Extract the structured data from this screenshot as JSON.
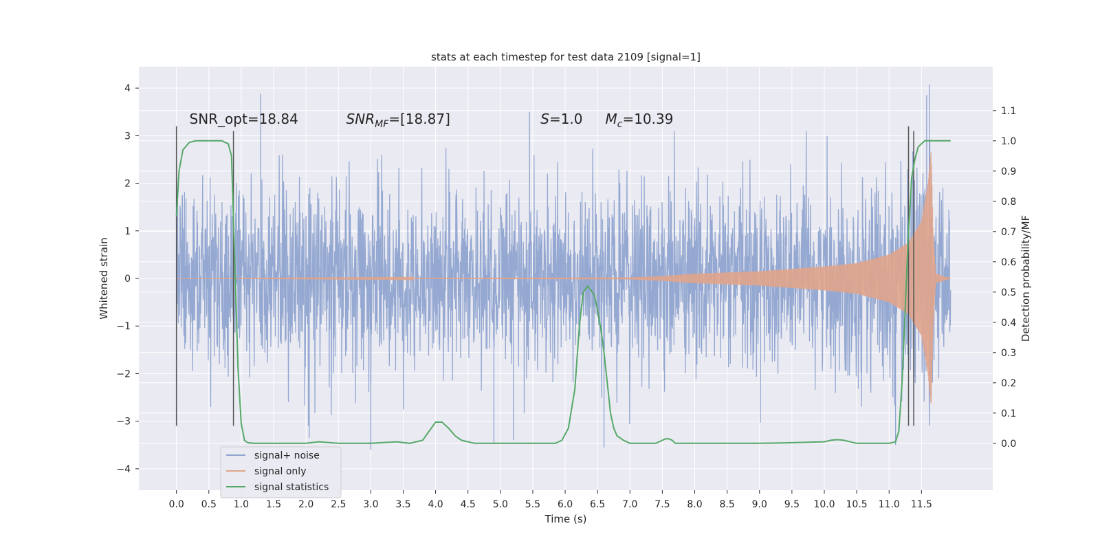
{
  "chart_data": {
    "type": "line",
    "title": "stats at each timestep for test data 2109 [signal=1]",
    "xlabel": "Time (s)",
    "ylabel": "Whitened strain",
    "y2label": "Detection probability/MF",
    "xlim": [
      -0.58,
      12.6
    ],
    "ylim": [
      -4.45,
      4.45
    ],
    "y2lim": [
      -0.155,
      1.245
    ],
    "xticks": [
      "0.0",
      "0.5",
      "1.0",
      "1.5",
      "2.0",
      "2.5",
      "3.0",
      "3.5",
      "4.0",
      "4.5",
      "5.0",
      "5.5",
      "6.0",
      "6.5",
      "7.0",
      "7.5",
      "8.0",
      "8.5",
      "9.0",
      "9.5",
      "10.0",
      "10.5",
      "11.0",
      "11.5"
    ],
    "yticks": [
      "4",
      "3",
      "2",
      "1",
      "0",
      "−1",
      "−2",
      "−3",
      "−4"
    ],
    "y2ticks": [
      "1.1",
      "1.0",
      "0.9",
      "0.8",
      "0.7",
      "0.6",
      "0.5",
      "0.4",
      "0.3",
      "0.2",
      "0.1",
      "0.0"
    ],
    "grid": true,
    "legend_position": "lower-left",
    "annotations": [
      {
        "text": "SNR_opt=18.84",
        "x": 0.2,
        "y": 3.35
      },
      {
        "text": "SNR",
        "sub": "MF",
        "rest": "=[18.87]",
        "italic": true,
        "x": 2.62,
        "y": 3.35
      },
      {
        "text": "S",
        "rest": "=1.0",
        "italic": true,
        "x": 5.62,
        "y": 3.35
      },
      {
        "text": "M",
        "sub": "c",
        "rest": "=10.39",
        "italic": true,
        "x": 6.62,
        "y": 3.35
      }
    ],
    "series": [
      {
        "name": "signal+ noise",
        "color": "#8fa4cf",
        "description_kind": "noise",
        "x_start": 0.0,
        "x_end": 11.95,
        "typical_band": [
          -1.9,
          1.95
        ],
        "extremes": [
          {
            "x": 0.0,
            "y": -3.1
          },
          {
            "x": 1.3,
            "y": 3.88
          },
          {
            "x": 2.05,
            "y": -3.35
          },
          {
            "x": 3.0,
            "y": -3.6
          },
          {
            "x": 4.9,
            "y": -3.45
          },
          {
            "x": 5.2,
            "y": -3.4
          },
          {
            "x": 5.45,
            "y": 3.5
          },
          {
            "x": 6.6,
            "y": -3.55
          },
          {
            "x": 11.1,
            "y": -3.5
          },
          {
            "x": 11.62,
            "y": 4.08
          },
          {
            "x": 11.58,
            "y": 3.85
          }
        ]
      },
      {
        "name": "signal only",
        "color": "#e0a48c",
        "description_kind": "chirp",
        "x_start": 0.0,
        "x_end": 11.95,
        "amplitude_points": [
          {
            "x": 0.0,
            "y": 0.0
          },
          {
            "x": 7.0,
            "y": 0.02
          },
          {
            "x": 7.5,
            "y": 0.05
          },
          {
            "x": 8.0,
            "y": 0.1
          },
          {
            "x": 9.0,
            "y": 0.15
          },
          {
            "x": 10.0,
            "y": 0.25
          },
          {
            "x": 10.5,
            "y": 0.32
          },
          {
            "x": 11.0,
            "y": 0.5
          },
          {
            "x": 11.3,
            "y": 0.75
          },
          {
            "x": 11.5,
            "y": 1.2
          },
          {
            "x": 11.6,
            "y": 2.0
          },
          {
            "x": 11.65,
            "y": 2.7
          },
          {
            "x": 11.68,
            "y": 1.0
          },
          {
            "x": 11.72,
            "y": 0.1
          },
          {
            "x": 11.95,
            "y": 0.0
          }
        ]
      },
      {
        "name": "signal statistics",
        "color": "#55a868",
        "axis": "right",
        "x": [
          0.0,
          0.04,
          0.1,
          0.2,
          0.3,
          0.4,
          0.5,
          0.6,
          0.7,
          0.8,
          0.85,
          0.9,
          0.95,
          1.0,
          1.05,
          1.1,
          1.2,
          1.5,
          2.0,
          2.2,
          2.5,
          3.0,
          3.4,
          3.6,
          3.8,
          3.9,
          4.0,
          4.1,
          4.2,
          4.3,
          4.4,
          4.6,
          5.0,
          5.5,
          5.85,
          5.95,
          6.05,
          6.15,
          6.22,
          6.28,
          6.35,
          6.45,
          6.5,
          6.55,
          6.6,
          6.65,
          6.7,
          6.75,
          6.8,
          6.9,
          7.0,
          7.4,
          7.5,
          7.55,
          7.6,
          7.65,
          7.7,
          7.8,
          8.0,
          9.0,
          9.5,
          10.0,
          10.1,
          10.2,
          10.3,
          10.5,
          11.0,
          11.1,
          11.15,
          11.2,
          11.25,
          11.3,
          11.35,
          11.4,
          11.45,
          11.5,
          11.55,
          11.6,
          11.7,
          11.8,
          11.9,
          11.95
        ],
        "y": [
          0.75,
          0.9,
          0.97,
          0.995,
          1.0,
          1.0,
          1.0,
          1.0,
          1.0,
          0.99,
          0.95,
          0.6,
          0.25,
          0.065,
          0.01,
          0.002,
          0.0,
          0.0,
          0.0,
          0.005,
          0.0,
          0.0,
          0.005,
          0.0,
          0.01,
          0.04,
          0.07,
          0.07,
          0.05,
          0.025,
          0.01,
          0.0,
          0.0,
          0.0,
          0.0,
          0.01,
          0.05,
          0.18,
          0.39,
          0.5,
          0.52,
          0.49,
          0.44,
          0.38,
          0.3,
          0.2,
          0.1,
          0.05,
          0.025,
          0.01,
          0.0,
          0.0,
          0.01,
          0.015,
          0.015,
          0.01,
          0.0,
          0.0,
          0.0,
          0.0,
          0.002,
          0.005,
          0.01,
          0.012,
          0.01,
          0.0,
          0.0,
          0.005,
          0.04,
          0.2,
          0.45,
          0.7,
          0.88,
          0.94,
          0.98,
          0.99,
          1.0,
          1.0,
          1.0,
          1.0,
          1.0,
          1.0
        ]
      }
    ],
    "vertical_markers": [
      {
        "x": 0.0,
        "y_from": -3.1,
        "y_to": 3.2
      },
      {
        "x": 0.88,
        "y_from": -3.1,
        "y_to": 3.1
      },
      {
        "x": 11.3,
        "y_from": -3.1,
        "y_to": 3.2
      },
      {
        "x": 11.38,
        "y_from": -3.1,
        "y_to": 3.1
      }
    ],
    "colors": {
      "background": "#eaeaf2",
      "grid": "#ffffff",
      "marker": "#555555"
    }
  }
}
